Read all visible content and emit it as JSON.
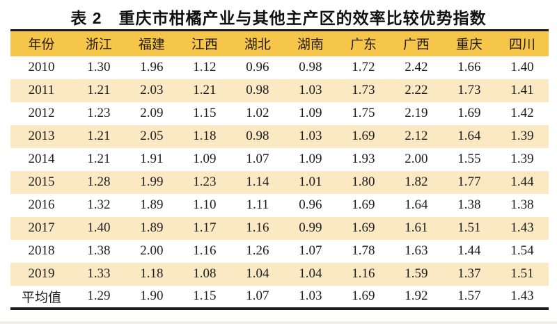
{
  "title": "表 2　重庆市柑橘产业与其他主产区的效率比较优势指数",
  "table": {
    "columns": [
      "年份",
      "浙江",
      "福建",
      "江西",
      "湖北",
      "湖南",
      "广东",
      "广西",
      "重庆",
      "四川"
    ],
    "rows": [
      [
        "2010",
        "1.30",
        "1.96",
        "1.12",
        "0.96",
        "0.98",
        "1.72",
        "2.42",
        "1.66",
        "1.40"
      ],
      [
        "2011",
        "1.21",
        "2.03",
        "1.21",
        "0.98",
        "1.03",
        "1.73",
        "2.22",
        "1.73",
        "1.41"
      ],
      [
        "2012",
        "1.23",
        "2.09",
        "1.15",
        "1.02",
        "1.09",
        "1.75",
        "2.19",
        "1.69",
        "1.42"
      ],
      [
        "2013",
        "1.21",
        "2.05",
        "1.18",
        "0.98",
        "1.03",
        "1.69",
        "2.12",
        "1.64",
        "1.39"
      ],
      [
        "2014",
        "1.21",
        "1.91",
        "1.09",
        "1.07",
        "1.09",
        "1.93",
        "2.00",
        "1.55",
        "1.39"
      ],
      [
        "2015",
        "1.28",
        "1.99",
        "1.23",
        "1.14",
        "1.01",
        "1.80",
        "1.82",
        "1.77",
        "1.44"
      ],
      [
        "2016",
        "1.32",
        "1.89",
        "1.10",
        "1.11",
        "0.96",
        "1.69",
        "1.64",
        "1.38",
        "1.38"
      ],
      [
        "2017",
        "1.40",
        "1.89",
        "1.17",
        "1.16",
        "0.99",
        "1.69",
        "1.61",
        "1.51",
        "1.43"
      ],
      [
        "2018",
        "1.38",
        "2.00",
        "1.16",
        "1.26",
        "1.07",
        "1.78",
        "1.63",
        "1.44",
        "1.54"
      ],
      [
        "2019",
        "1.33",
        "1.18",
        "1.08",
        "1.04",
        "1.04",
        "1.16",
        "1.59",
        "1.37",
        "1.51"
      ],
      [
        "平均值",
        "1.29",
        "1.90",
        "1.15",
        "1.07",
        "1.03",
        "1.69",
        "1.92",
        "1.57",
        "1.43"
      ]
    ],
    "striped_row_labels": [
      "2011",
      "2013",
      "2015",
      "2017",
      "2019"
    ]
  },
  "colors": {
    "header_bg": "#F6C64A",
    "stripe_bg": "#FBE9C3",
    "rule": "#1A1A1A",
    "text": "#1C1C1C"
  }
}
